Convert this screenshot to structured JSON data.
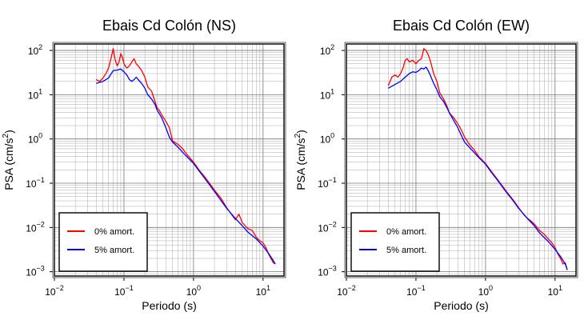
{
  "chart_data": [
    {
      "type": "line",
      "title": "Ebais Cd Colón (NS)",
      "xlabel": "Periodo (s)",
      "ylabel_base": "PSA (cm/s",
      "ylabel_sup": "2",
      "ylabel_close": ")",
      "x_scale": "log",
      "y_scale": "log",
      "xlim": [
        0.01,
        20
      ],
      "ylim": [
        0.0008,
        140
      ],
      "grid": true,
      "legend_position": "bottom-left",
      "x_ticks": [
        {
          "value": 0.01,
          "base": "10",
          "exp": "−2"
        },
        {
          "value": 0.1,
          "base": "10",
          "exp": "−1"
        },
        {
          "value": 1,
          "base": "10",
          "exp": "0"
        },
        {
          "value": 10,
          "base": "10",
          "exp": "1"
        }
      ],
      "y_ticks": [
        {
          "value": 0.001,
          "base": "10",
          "exp": "−3"
        },
        {
          "value": 0.01,
          "base": "10",
          "exp": "−2"
        },
        {
          "value": 0.1,
          "base": "10",
          "exp": "−1"
        },
        {
          "value": 1,
          "base": "10",
          "exp": "0"
        },
        {
          "value": 10,
          "base": "10",
          "exp": "1"
        },
        {
          "value": 100,
          "base": "10",
          "exp": "2"
        }
      ],
      "series": [
        {
          "name": "0% amort.",
          "color": "#ff0000",
          "x": [
            0.04,
            0.045,
            0.05,
            0.055,
            0.06,
            0.065,
            0.07,
            0.075,
            0.08,
            0.085,
            0.09,
            0.095,
            0.1,
            0.11,
            0.12,
            0.13,
            0.14,
            0.15,
            0.16,
            0.18,
            0.2,
            0.22,
            0.25,
            0.28,
            0.3,
            0.32,
            0.35,
            0.4,
            0.45,
            0.5,
            0.6,
            0.7,
            0.8,
            1.0,
            1.2,
            1.5,
            2.0,
            2.5,
            3.0,
            3.5,
            4.0,
            4.5,
            5.0,
            5.5,
            6.0,
            7.0,
            8.0,
            9.0,
            10.0,
            11.0,
            12.0,
            13.0,
            14.0,
            15.0
          ],
          "y": [
            22,
            20,
            24,
            30,
            40,
            65,
            110,
            60,
            45,
            55,
            85,
            70,
            50,
            40,
            45,
            55,
            65,
            50,
            45,
            35,
            25,
            15,
            12,
            7,
            5,
            4.5,
            3.5,
            2.5,
            1.8,
            0.9,
            0.75,
            0.6,
            0.45,
            0.3,
            0.2,
            0.13,
            0.07,
            0.045,
            0.028,
            0.02,
            0.015,
            0.02,
            0.013,
            0.011,
            0.0095,
            0.0085,
            0.006,
            0.005,
            0.0045,
            0.0035,
            0.0025,
            0.002,
            0.0016,
            0.0015
          ]
        },
        {
          "name": "5% amort.",
          "color": "#0000ff",
          "x": [
            0.04,
            0.05,
            0.06,
            0.07,
            0.08,
            0.09,
            0.1,
            0.11,
            0.12,
            0.13,
            0.14,
            0.15,
            0.16,
            0.18,
            0.2,
            0.22,
            0.25,
            0.28,
            0.3,
            0.35,
            0.4,
            0.45,
            0.5,
            0.6,
            0.7,
            0.8,
            1.0,
            1.2,
            1.5,
            2.0,
            2.5,
            3.0,
            4.0,
            5.0,
            6.0,
            8.0,
            10.0,
            12.0,
            14.0,
            15.0
          ],
          "y": [
            18,
            20,
            24,
            35,
            36,
            38,
            33,
            28,
            22,
            20,
            22,
            25,
            22,
            18,
            14,
            10,
            8,
            6,
            4.5,
            3,
            1.8,
            1.1,
            0.85,
            0.65,
            0.5,
            0.4,
            0.28,
            0.19,
            0.12,
            0.065,
            0.04,
            0.027,
            0.016,
            0.011,
            0.008,
            0.0055,
            0.0038,
            0.0026,
            0.0018,
            0.0015
          ]
        }
      ]
    },
    {
      "type": "line",
      "title": "Ebais Cd Colón (EW)",
      "xlabel": "Periodo (s)",
      "ylabel_base": "PSA (cm/s",
      "ylabel_sup": "2",
      "ylabel_close": ")",
      "x_scale": "log",
      "y_scale": "log",
      "xlim": [
        0.01,
        20
      ],
      "ylim": [
        0.0008,
        140
      ],
      "grid": true,
      "legend_position": "bottom-left",
      "x_ticks": [
        {
          "value": 0.01,
          "base": "10",
          "exp": "−2"
        },
        {
          "value": 0.1,
          "base": "10",
          "exp": "−1"
        },
        {
          "value": 1,
          "base": "10",
          "exp": "0"
        },
        {
          "value": 10,
          "base": "10",
          "exp": "1"
        }
      ],
      "y_ticks": [
        {
          "value": 0.001,
          "base": "10",
          "exp": "−3"
        },
        {
          "value": 0.01,
          "base": "10",
          "exp": "−2"
        },
        {
          "value": 0.1,
          "base": "10",
          "exp": "−1"
        },
        {
          "value": 1,
          "base": "10",
          "exp": "0"
        },
        {
          "value": 10,
          "base": "10",
          "exp": "1"
        },
        {
          "value": 100,
          "base": "10",
          "exp": "2"
        }
      ],
      "series": [
        {
          "name": "0% amort.",
          "color": "#ff0000",
          "x": [
            0.04,
            0.045,
            0.05,
            0.055,
            0.06,
            0.065,
            0.07,
            0.075,
            0.08,
            0.09,
            0.1,
            0.11,
            0.12,
            0.13,
            0.14,
            0.15,
            0.16,
            0.18,
            0.2,
            0.22,
            0.25,
            0.28,
            0.3,
            0.32,
            0.35,
            0.4,
            0.45,
            0.5,
            0.6,
            0.7,
            0.8,
            1.0,
            1.2,
            1.5,
            2.0,
            2.5,
            3.0,
            3.5,
            4.0,
            4.5,
            5.0,
            6.0,
            7.0,
            8.0,
            9.0,
            10.0,
            11.0,
            12.0,
            13.0,
            14.0,
            15.0
          ],
          "y": [
            16,
            25,
            28,
            25,
            30,
            40,
            60,
            65,
            55,
            60,
            50,
            60,
            65,
            110,
            100,
            80,
            60,
            30,
            20,
            11,
            8,
            5.5,
            4,
            3.5,
            3,
            2.2,
            1.6,
            1.1,
            0.72,
            0.55,
            0.4,
            0.28,
            0.19,
            0.12,
            0.065,
            0.042,
            0.028,
            0.02,
            0.016,
            0.014,
            0.012,
            0.0085,
            0.007,
            0.0055,
            0.0045,
            0.0035,
            0.0025,
            0.002,
            0.0015,
            0.0016,
            0.0011
          ]
        },
        {
          "name": "5% amort.",
          "color": "#0000ff",
          "x": [
            0.04,
            0.05,
            0.06,
            0.07,
            0.08,
            0.09,
            0.1,
            0.11,
            0.12,
            0.13,
            0.14,
            0.15,
            0.16,
            0.18,
            0.2,
            0.22,
            0.25,
            0.28,
            0.3,
            0.35,
            0.4,
            0.45,
            0.5,
            0.6,
            0.7,
            0.8,
            1.0,
            1.2,
            1.5,
            2.0,
            2.5,
            3.0,
            4.0,
            5.0,
            6.0,
            8.0,
            10.0,
            12.0,
            14.0,
            15.0
          ],
          "y": [
            14,
            17,
            20,
            25,
            30,
            33,
            32,
            35,
            40,
            38,
            42,
            35,
            28,
            18,
            13,
            9,
            7,
            5,
            4,
            2.6,
            1.8,
            1.2,
            0.85,
            0.62,
            0.48,
            0.38,
            0.27,
            0.18,
            0.115,
            0.062,
            0.04,
            0.027,
            0.016,
            0.011,
            0.0075,
            0.0048,
            0.0032,
            0.0022,
            0.0015,
            0.0011
          ]
        }
      ]
    }
  ]
}
